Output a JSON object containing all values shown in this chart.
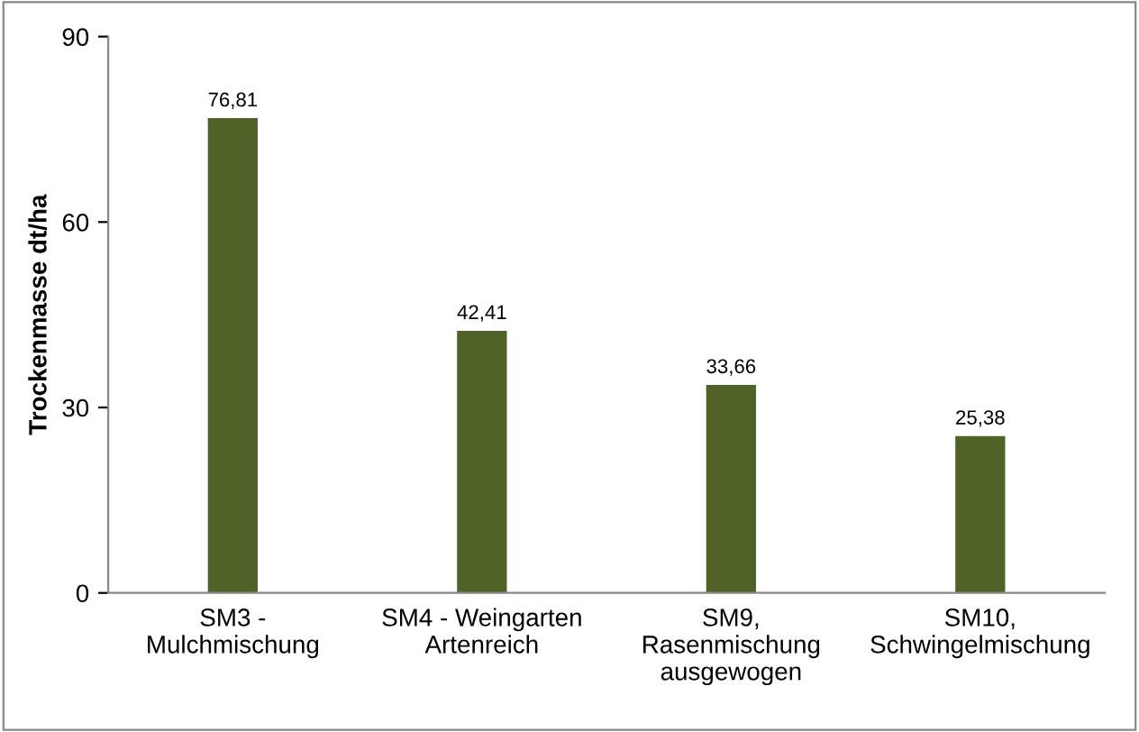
{
  "chart_data": {
    "type": "bar",
    "ylabel": "Trockenmasse dt/ha",
    "categories": [
      "SM3 -\nMulchmischung",
      "SM4 - Weingarten\nArtenreich",
      "SM9,\nRasenmischung\nausgewogen",
      "SM10,\nSchwingelmischung"
    ],
    "values": [
      76.81,
      42.41,
      33.66,
      25.38
    ],
    "value_labels": [
      "76,81",
      "42,41",
      "33,66",
      "25,38"
    ],
    "color": "#4f6228",
    "ylim": [
      0,
      90
    ],
    "yticks": [
      0,
      30,
      60,
      90
    ],
    "grid": false,
    "legend": false
  }
}
